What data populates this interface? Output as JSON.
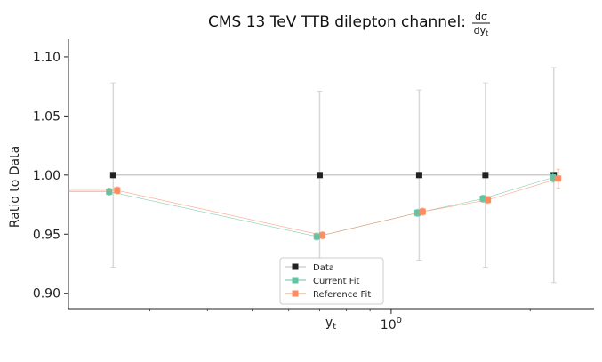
{
  "chart_data": {
    "type": "line",
    "title": "CMS 13 TeV TTB dilepton channel: ",
    "title_fraction": {
      "numerator": "dσ",
      "denominator_base": "dy",
      "denominator_sub": "t"
    },
    "xlabel": {
      "base": "y",
      "sub": "t"
    },
    "ylabel": "Ratio to Data",
    "x_scale": "log",
    "xlim": [
      0.2,
      2.75
    ],
    "ylim": [
      0.887,
      1.115
    ],
    "yticks": [
      0.9,
      0.95,
      1.0,
      1.05,
      1.1
    ],
    "ytick_labels": [
      "0.90",
      "0.95",
      "1.00",
      "1.05",
      "1.10"
    ],
    "xtick_major": {
      "value": 1,
      "label_base": "10",
      "label_exp": "0"
    },
    "x_minor_ticks": [
      0.3,
      0.4,
      0.5,
      0.6,
      0.7,
      0.8,
      0.9,
      2
    ],
    "grid": false,
    "legend_placement": "lower center",
    "series": [
      {
        "name": "Data",
        "color": "#222222",
        "marker": "square",
        "x": [
          0.25,
          0.7,
          1.15,
          1.6,
          2.25
        ],
        "y": [
          1.0,
          1.0,
          1.0,
          1.0,
          1.0
        ],
        "err": [
          0.078,
          0.071,
          0.072,
          0.078,
          0.091
        ]
      },
      {
        "name": "Current Fit",
        "color": "#66c2a5",
        "marker": "square",
        "x": [
          0.245,
          0.69,
          1.14,
          1.58,
          2.24
        ],
        "y": [
          0.986,
          0.948,
          0.968,
          0.98,
          0.998
        ],
        "err": [
          0.003,
          0.003,
          0.003,
          0.003,
          0.004
        ]
      },
      {
        "name": "Reference Fit",
        "color": "#fc8d62",
        "marker": "square",
        "x": [
          0.255,
          0.71,
          1.17,
          1.62,
          2.3
        ],
        "y": [
          0.987,
          0.949,
          0.969,
          0.979,
          0.997
        ],
        "err": [
          0.003,
          0.003,
          0.003,
          0.003,
          0.008
        ]
      }
    ]
  }
}
